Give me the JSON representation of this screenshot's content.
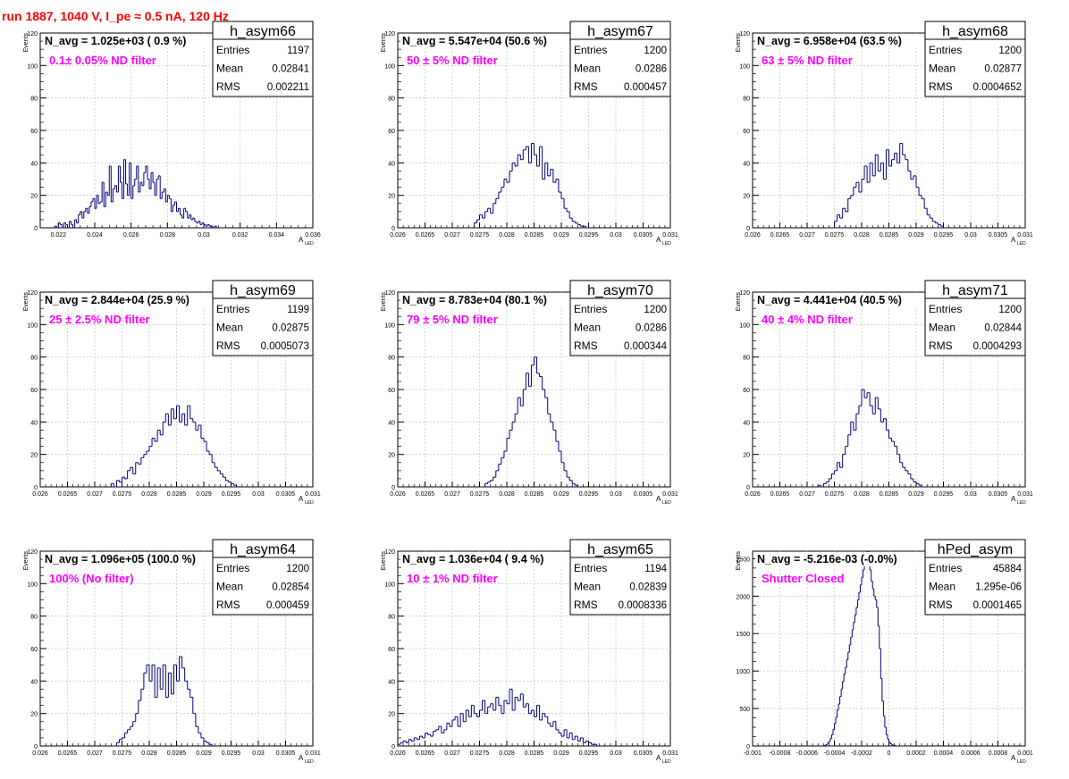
{
  "page": {
    "title": "run 1887,  1040 V, I_pe ≈ 0.5 nA, 120 Hz",
    "colors": {
      "title": "#ff0000",
      "annotation": "#ff00ff",
      "histogram": "#000080",
      "grid": "#c8c8c8"
    },
    "stat_labels": {
      "entries": "Entries",
      "mean": "Mean",
      "rms": "RMS"
    },
    "axis_labels": {
      "y": "Events",
      "x_main": "A",
      "x_sub": "LED"
    }
  },
  "chart_data": [
    {
      "type": "bar",
      "name": "h_asym66",
      "navg": "N_avg = 1.025e+03 ( 0.9 %)",
      "annotation": "0.1± 0.05% ND filter",
      "stats": {
        "entries": "1197",
        "mean": "0.02841",
        "rms": "0.002211"
      },
      "xlim": [
        0.021,
        0.036
      ],
      "ylim": [
        0,
        120
      ],
      "xticks": [
        0.022,
        0.024,
        0.026,
        0.028,
        0.03,
        0.032,
        0.034,
        0.036
      ],
      "xtick_labels": [
        "0.022",
        "0.024",
        "0.026",
        "0.028",
        "0.03",
        "0.032",
        "0.034",
        "0.036"
      ],
      "yticks": [
        0,
        20,
        40,
        60,
        80,
        100,
        120
      ],
      "ytick_labels": [
        "0",
        "20",
        "40",
        "60",
        "80",
        "100",
        "120"
      ],
      "bin_start": 0.0218,
      "bin_width": 0.0001,
      "values": [
        1,
        0,
        3,
        2,
        0,
        3,
        2,
        0,
        4,
        2,
        0,
        5,
        3,
        8,
        10,
        6,
        10,
        12,
        9,
        13,
        16,
        18,
        12,
        20,
        15,
        16,
        28,
        13,
        22,
        20,
        38,
        16,
        24,
        26,
        22,
        38,
        28,
        18,
        42,
        27,
        20,
        40,
        18,
        26,
        30,
        38,
        22,
        28,
        26,
        34,
        38,
        30,
        24,
        34,
        28,
        20,
        30,
        32,
        18,
        22,
        24,
        16,
        20,
        18,
        10,
        14,
        16,
        10,
        12,
        8,
        6,
        12,
        10,
        6,
        8,
        5,
        6,
        4,
        3,
        4,
        2,
        3,
        2,
        1,
        2,
        1,
        1,
        0,
        1,
        0
      ]
    },
    {
      "type": "bar",
      "name": "h_asym67",
      "navg": "N_avg = 5.547e+04 (50.6 %)",
      "annotation": "50 ± 5% ND filter",
      "stats": {
        "entries": "1200",
        "mean": "0.0286",
        "rms": "0.000457"
      },
      "xlim": [
        0.026,
        0.031
      ],
      "ylim": [
        0,
        120
      ],
      "xticks": [
        0.026,
        0.0265,
        0.027,
        0.0275,
        0.028,
        0.0285,
        0.029,
        0.0295,
        0.03,
        0.0305,
        0.031
      ],
      "xtick_labels": [
        "0.026",
        "0.0265",
        "0.027",
        "0.0275",
        "0.028",
        "0.0285",
        "0.029",
        "0.0295",
        "0.03",
        "0.0305",
        "0.031"
      ],
      "yticks": [
        0,
        20,
        40,
        60,
        80,
        100,
        120
      ],
      "ytick_labels": [
        "0",
        "20",
        "40",
        "60",
        "80",
        "100",
        "120"
      ],
      "bin_start": 0.0274,
      "bin_width": 5e-05,
      "values": [
        3,
        5,
        8,
        6,
        10,
        12,
        9,
        15,
        18,
        22,
        25,
        30,
        28,
        35,
        40,
        38,
        45,
        42,
        48,
        50,
        40,
        52,
        45,
        38,
        50,
        30,
        40,
        32,
        36,
        28,
        30,
        22,
        18,
        12,
        10,
        6,
        4,
        3,
        2,
        1,
        1,
        0
      ]
    },
    {
      "type": "bar",
      "name": "h_asym68",
      "navg": "N_avg = 6.958e+04 (63.5 %)",
      "annotation": "63 ± 5% ND filter",
      "stats": {
        "entries": "1200",
        "mean": "0.02877",
        "rms": "0.0004652"
      },
      "xlim": [
        0.026,
        0.031
      ],
      "ylim": [
        0,
        120
      ],
      "xticks": [
        0.026,
        0.0265,
        0.027,
        0.0275,
        0.028,
        0.0285,
        0.029,
        0.0295,
        0.03,
        0.0305,
        0.031
      ],
      "xtick_labels": [
        "0.026",
        "0.0265",
        "0.027",
        "0.0275",
        "0.028",
        "0.0285",
        "0.029",
        "0.0295",
        "0.03",
        "0.0305",
        "0.031"
      ],
      "yticks": [
        0,
        20,
        40,
        60,
        80,
        100,
        120
      ],
      "ytick_labels": [
        "0",
        "20",
        "40",
        "60",
        "80",
        "100",
        "120"
      ],
      "bin_start": 0.0275,
      "bin_width": 5e-05,
      "values": [
        4,
        8,
        6,
        12,
        10,
        18,
        20,
        25,
        28,
        22,
        30,
        38,
        28,
        40,
        32,
        45,
        35,
        40,
        30,
        48,
        38,
        42,
        46,
        40,
        52,
        45,
        42,
        35,
        30,
        32,
        25,
        20,
        18,
        12,
        8,
        6,
        4,
        3,
        2,
        1,
        0
      ]
    },
    {
      "type": "bar",
      "name": "h_asym69",
      "navg": "N_avg = 2.844e+04 (25.9 %)",
      "annotation": "25 ± 2.5% ND filter",
      "stats": {
        "entries": "1199",
        "mean": "0.02875",
        "rms": "0.0005073"
      },
      "xlim": [
        0.026,
        0.031
      ],
      "ylim": [
        0,
        120
      ],
      "xticks": [
        0.026,
        0.0265,
        0.027,
        0.0275,
        0.028,
        0.0285,
        0.029,
        0.0295,
        0.03,
        0.0305,
        0.031
      ],
      "xtick_labels": [
        "0.026",
        "0.0265",
        "0.027",
        "0.0275",
        "0.028",
        "0.0285",
        "0.029",
        "0.0295",
        "0.03",
        "0.0305",
        "0.031"
      ],
      "yticks": [
        0,
        20,
        40,
        60,
        80,
        100,
        120
      ],
      "ytick_labels": [
        "0",
        "20",
        "40",
        "60",
        "80",
        "100",
        "120"
      ],
      "bin_start": 0.0273,
      "bin_width": 5e-05,
      "values": [
        2,
        0,
        4,
        3,
        6,
        5,
        10,
        12,
        8,
        15,
        14,
        18,
        20,
        22,
        25,
        30,
        28,
        35,
        32,
        40,
        45,
        38,
        48,
        42,
        50,
        40,
        45,
        38,
        50,
        42,
        40,
        35,
        38,
        30,
        28,
        22,
        20,
        15,
        12,
        10,
        8,
        6,
        4,
        3,
        2,
        1
      ]
    },
    {
      "type": "bar",
      "name": "h_asym70",
      "navg": "N_avg = 8.783e+04 (80.1 %)",
      "annotation": "79 ± 5% ND filter",
      "stats": {
        "entries": "1200",
        "mean": "0.0286",
        "rms": "0.000344"
      },
      "xlim": [
        0.026,
        0.031
      ],
      "ylim": [
        0,
        120
      ],
      "xticks": [
        0.026,
        0.0265,
        0.027,
        0.0275,
        0.028,
        0.0285,
        0.029,
        0.0295,
        0.03,
        0.0305,
        0.031
      ],
      "xtick_labels": [
        "0.026",
        "0.0265",
        "0.027",
        "0.0275",
        "0.028",
        "0.0285",
        "0.029",
        "0.0295",
        "0.03",
        "0.0305",
        "0.031"
      ],
      "yticks": [
        0,
        20,
        40,
        60,
        80,
        100,
        120
      ],
      "ytick_labels": [
        "0",
        "20",
        "40",
        "60",
        "80",
        "100",
        "120"
      ],
      "bin_start": 0.0276,
      "bin_width": 5e-05,
      "values": [
        2,
        3,
        4,
        6,
        10,
        14,
        18,
        22,
        30,
        35,
        40,
        45,
        55,
        50,
        60,
        70,
        62,
        75,
        80,
        70,
        68,
        60,
        55,
        45,
        40,
        35,
        28,
        22,
        15,
        10,
        6,
        4,
        2,
        1,
        0
      ]
    },
    {
      "type": "bar",
      "name": "h_asym71",
      "navg": "N_avg = 4.441e+04 (40.5 %)",
      "annotation": "40 ± 4% ND filter",
      "stats": {
        "entries": "1200",
        "mean": "0.02844",
        "rms": "0.0004293"
      },
      "xlim": [
        0.026,
        0.031
      ],
      "ylim": [
        0,
        120
      ],
      "xticks": [
        0.026,
        0.0265,
        0.027,
        0.0275,
        0.028,
        0.0285,
        0.029,
        0.0295,
        0.03,
        0.0305,
        0.031
      ],
      "xtick_labels": [
        "0.026",
        "0.0265",
        "0.027",
        "0.0275",
        "0.028",
        "0.0285",
        "0.029",
        "0.0295",
        "0.03",
        "0.0305",
        "0.031"
      ],
      "yticks": [
        0,
        20,
        40,
        60,
        80,
        100,
        120
      ],
      "ytick_labels": [
        "0",
        "20",
        "40",
        "60",
        "80",
        "100",
        "120"
      ],
      "bin_start": 0.0272,
      "bin_width": 5e-05,
      "values": [
        1,
        0,
        2,
        3,
        5,
        8,
        10,
        15,
        12,
        20,
        25,
        32,
        40,
        35,
        45,
        50,
        60,
        55,
        58,
        50,
        45,
        55,
        48,
        40,
        42,
        35,
        30,
        28,
        25,
        20,
        15,
        12,
        10,
        8,
        5,
        3,
        2,
        1,
        0
      ]
    },
    {
      "type": "bar",
      "name": "h_asym64",
      "navg": "N_avg = 1.096e+05 (100.0 %)",
      "annotation": "100% (No filter)",
      "stats": {
        "entries": "1200",
        "mean": "0.02854",
        "rms": "0.000459"
      },
      "xlim": [
        0.026,
        0.031
      ],
      "ylim": [
        0,
        120
      ],
      "xticks": [
        0.026,
        0.0265,
        0.027,
        0.0275,
        0.028,
        0.0285,
        0.029,
        0.0295,
        0.03,
        0.0305,
        0.031
      ],
      "xtick_labels": [
        "0.026",
        "0.0265",
        "0.027",
        "0.0275",
        "0.028",
        "0.0285",
        "0.029",
        "0.0295",
        "0.03",
        "0.0305",
        "0.031"
      ],
      "yticks": [
        0,
        20,
        40,
        60,
        80,
        100,
        120
      ],
      "ytick_labels": [
        "0",
        "20",
        "40",
        "60",
        "80",
        "100",
        "120"
      ],
      "bin_start": 0.0274,
      "bin_width": 5e-05,
      "values": [
        2,
        4,
        5,
        8,
        10,
        12,
        15,
        20,
        28,
        35,
        45,
        50,
        40,
        50,
        30,
        48,
        35,
        50,
        30,
        45,
        32,
        50,
        40,
        55,
        48,
        40,
        35,
        30,
        20,
        12,
        8,
        5,
        3,
        2,
        1
      ]
    },
    {
      "type": "bar",
      "name": "h_asym65",
      "navg": "N_avg = 1.036e+04 ( 9.4 %)",
      "annotation": "10 ± 1% ND filter",
      "stats": {
        "entries": "1194",
        "mean": "0.02839",
        "rms": "0.0008336"
      },
      "xlim": [
        0.026,
        0.031
      ],
      "ylim": [
        0,
        120
      ],
      "xticks": [
        0.026,
        0.0265,
        0.027,
        0.0275,
        0.028,
        0.0285,
        0.029,
        0.0295,
        0.03,
        0.0305,
        0.031
      ],
      "xtick_labels": [
        "0.026",
        "0.0265",
        "0.027",
        "0.0275",
        "0.028",
        "0.0285",
        "0.029",
        "0.0295",
        "0.03",
        "0.0305",
        "0.031"
      ],
      "yticks": [
        0,
        20,
        40,
        60,
        80,
        100,
        120
      ],
      "ytick_labels": [
        "0",
        "20",
        "40",
        "60",
        "80",
        "100",
        "120"
      ],
      "bin_start": 0.026,
      "bin_width": 5e-05,
      "values": [
        1,
        2,
        3,
        2,
        4,
        3,
        5,
        4,
        6,
        5,
        8,
        7,
        6,
        9,
        10,
        12,
        8,
        10,
        14,
        12,
        16,
        18,
        12,
        20,
        15,
        22,
        18,
        25,
        20,
        18,
        22,
        28,
        20,
        24,
        26,
        22,
        30,
        25,
        20,
        28,
        26,
        35,
        22,
        30,
        28,
        32,
        24,
        26,
        20,
        22,
        18,
        25,
        16,
        20,
        18,
        14,
        12,
        15,
        10,
        8,
        6,
        10,
        5,
        8,
        4,
        6,
        3,
        5,
        2,
        3,
        2,
        1,
        1,
        0
      ]
    },
    {
      "type": "bar",
      "name": "hPed_asym",
      "navg": "N_avg = -5.216e-03 (-0.0%)",
      "annotation": "Shutter Closed",
      "stats": {
        "entries": "45884",
        "mean": "1.295e-06",
        "rms": "0.0001465"
      },
      "xlim": [
        -0.001,
        0.001
      ],
      "ylim": [
        0,
        2600
      ],
      "xticks": [
        -0.001,
        -0.0008,
        -0.0006,
        -0.0004,
        -0.0002,
        0,
        0.0002,
        0.0004,
        0.0006,
        0.0008,
        0.001
      ],
      "xtick_labels": [
        "-0.001",
        "-0.0008",
        "-0.0006",
        "-0.0004",
        "-0.0002",
        "0",
        "0.0002",
        "0.0004",
        "0.0006",
        "0.0008",
        "0.001"
      ],
      "yticks": [
        0,
        500,
        1000,
        1500,
        2000,
        2500
      ],
      "ytick_labels": [
        "0",
        "500",
        "1000",
        "1500",
        "2000",
        "2500"
      ],
      "bin_start": -0.00048,
      "bin_width": 1e-05,
      "values": [
        5,
        10,
        20,
        40,
        60,
        100,
        150,
        220,
        300,
        380,
        480,
        560,
        660,
        760,
        860,
        960,
        1050,
        1150,
        1250,
        1350,
        1450,
        1550,
        1650,
        1750,
        1850,
        1950,
        2050,
        2150,
        2250,
        2350,
        2450,
        2550,
        2600,
        2500,
        2350,
        2200,
        2100,
        2000,
        1950,
        1850,
        1600,
        1300,
        900,
        600,
        400,
        250,
        150,
        90,
        50,
        30,
        15,
        8,
        4
      ]
    }
  ]
}
